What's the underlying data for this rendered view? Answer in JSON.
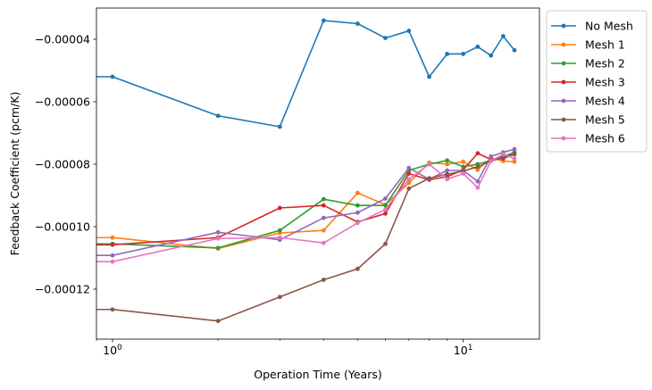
{
  "chart_data": {
    "type": "line",
    "xlabel": "Operation Time (Years)",
    "ylabel": "Feedback Coefficient (pcm/K)",
    "xscale": "log",
    "xlim": [
      0.9,
      16.5
    ],
    "ylim": [
      -0.000136,
      -3e-05
    ],
    "xticks": [
      {
        "value": 1,
        "base": "10",
        "exp": "0"
      },
      {
        "value": 10,
        "base": "10",
        "exp": "1"
      }
    ],
    "yticks": [
      {
        "value": -4e-05,
        "label": "−0.00004"
      },
      {
        "value": -6e-05,
        "label": "−0.00006"
      },
      {
        "value": -8e-05,
        "label": "−0.00008"
      },
      {
        "value": -0.0001,
        "label": "−0.00010"
      },
      {
        "value": -0.00012,
        "label": "−0.00012"
      }
    ],
    "legend_position": "outside-right",
    "grid": false,
    "series": [
      {
        "name": "No Mesh",
        "color": "#1f77b4",
        "x": [
          0.5,
          1,
          2,
          3,
          4,
          5,
          6,
          7,
          8,
          9,
          10,
          11,
          12,
          13,
          14
        ],
        "y": [
          -5.2e-05,
          -5.2e-05,
          -6.45e-05,
          -6.8e-05,
          -3.4e-05,
          -3.5e-05,
          -3.96e-05,
          -3.73e-05,
          -5.2e-05,
          -4.47e-05,
          -4.47e-05,
          -4.24e-05,
          -4.52e-05,
          -3.9e-05,
          -4.35e-05
        ]
      },
      {
        "name": "Mesh 1",
        "color": "#ff7f0e",
        "x": [
          0.5,
          1,
          2,
          3,
          4,
          5,
          6,
          7,
          8,
          9,
          10,
          11,
          12,
          13,
          14
        ],
        "y": [
          -0.0001035,
          -0.0001035,
          -0.000107,
          -0.000102,
          -0.0001012,
          -8.92e-05,
          -9.3e-05,
          -8.6e-05,
          -7.95e-05,
          -8e-05,
          -7.92e-05,
          -8.18e-05,
          -7.8e-05,
          -7.9e-05,
          -7.92e-05
        ]
      },
      {
        "name": "Mesh 2",
        "color": "#2ca02c",
        "x": [
          0.5,
          1,
          2,
          3,
          4,
          5,
          6,
          7,
          8,
          9,
          10,
          11,
          12,
          13,
          14
        ],
        "y": [
          -0.0001055,
          -0.0001055,
          -0.0001068,
          -0.0001012,
          -9.12e-05,
          -9.32e-05,
          -9.32e-05,
          -8.2e-05,
          -8e-05,
          -7.88e-05,
          -8.08e-05,
          -8e-05,
          -7.88e-05,
          -7.75e-05,
          -7.62e-05
        ]
      },
      {
        "name": "Mesh 3",
        "color": "#d62728",
        "x": [
          0.5,
          1,
          2,
          3,
          4,
          5,
          6,
          7,
          8,
          9,
          10,
          11,
          12,
          13,
          14
        ],
        "y": [
          -0.0001058,
          -0.0001058,
          -0.0001035,
          -9.4e-05,
          -9.32e-05,
          -9.85e-05,
          -9.58e-05,
          -8.3e-05,
          -8.5e-05,
          -8.4e-05,
          -8.18e-05,
          -7.65e-05,
          -7.85e-05,
          -7.82e-05,
          -7.68e-05
        ]
      },
      {
        "name": "Mesh 4",
        "color": "#9467bd",
        "x": [
          0.5,
          1,
          2,
          3,
          4,
          5,
          6,
          7,
          8,
          9,
          10,
          11,
          12,
          13,
          14
        ],
        "y": [
          -0.0001092,
          -0.0001092,
          -0.0001018,
          -0.0001042,
          -9.72e-05,
          -9.55e-05,
          -9.1e-05,
          -8.12e-05,
          -8.48e-05,
          -8.2e-05,
          -8.2e-05,
          -8.55e-05,
          -7.75e-05,
          -7.62e-05,
          -7.52e-05
        ]
      },
      {
        "name": "Mesh 5",
        "color": "#8c564b",
        "x": [
          0.5,
          1,
          2,
          3,
          4,
          5,
          6,
          7,
          8,
          9,
          10,
          11,
          12,
          13,
          14
        ],
        "y": [
          -0.0001265,
          -0.0001265,
          -0.0001302,
          -0.0001225,
          -0.000117,
          -0.0001135,
          -0.0001055,
          -8.78e-05,
          -8.45e-05,
          -8.32e-05,
          -8.22e-05,
          -8.08e-05,
          -7.9e-05,
          -7.78e-05,
          -7.68e-05
        ]
      },
      {
        "name": "Mesh 6",
        "color": "#e377c2",
        "x": [
          0.5,
          1,
          2,
          3,
          4,
          5,
          6,
          7,
          8,
          9,
          10,
          11,
          12,
          13,
          14
        ],
        "y": [
          -0.0001112,
          -0.0001112,
          -0.0001038,
          -0.0001035,
          -0.0001052,
          -9.88e-05,
          -9.45e-05,
          -8.48e-05,
          -8e-05,
          -8.48e-05,
          -8.3e-05,
          -8.75e-05,
          -7.9e-05,
          -7.68e-05,
          -7.82e-05
        ]
      }
    ]
  }
}
